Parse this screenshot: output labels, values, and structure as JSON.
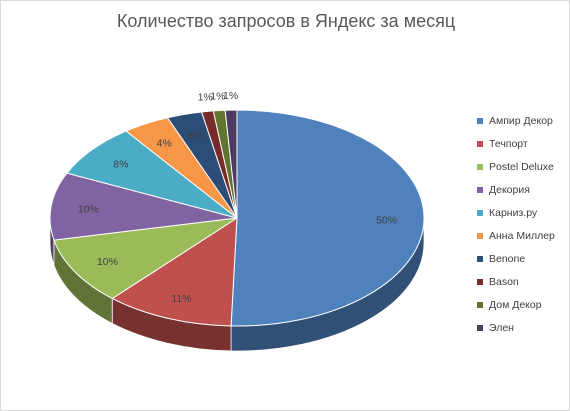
{
  "chart_data": {
    "type": "pie",
    "title": "Количество запросов в Яндекс за месяц",
    "categories": [
      "Ампир Декор",
      "Течпорт",
      "Postel Deluxe",
      "Декория",
      "Карниз.ру",
      "Анна Миллер",
      "Benone",
      "Вason",
      "Дом Декор",
      "Элен"
    ],
    "values": [
      50,
      11,
      10,
      10,
      8,
      4,
      3,
      1,
      1,
      1
    ],
    "data_labels": [
      "50%",
      "11%",
      "10%",
      "10%",
      "8%",
      "4%",
      "3%",
      "1%",
      "1%",
      "1%"
    ],
    "colors": [
      "#4f81bd",
      "#c0504d",
      "#9bbb59",
      "#8064a2",
      "#4bacc6",
      "#f79646",
      "#2c4d75",
      "#772c2a",
      "#5f7530",
      "#4d3b62"
    ],
    "legend_position": "right",
    "style": "3d"
  }
}
